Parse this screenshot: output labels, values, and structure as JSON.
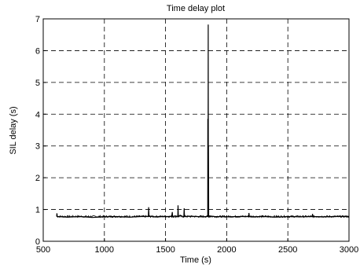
{
  "chart_data": {
    "type": "line",
    "title": "Time delay plot",
    "xlabel": "Time (s)",
    "ylabel": "SIL delay (s)",
    "xlim": [
      500,
      3000
    ],
    "ylim": [
      0,
      7
    ],
    "xticks": [
      "500",
      "1000",
      "1500",
      "2000",
      "2500",
      "3000"
    ],
    "yticks": [
      "0",
      "1",
      "2",
      "3",
      "4",
      "5",
      "6",
      "7"
    ],
    "grid": true,
    "grid_style": "dashed",
    "line_color": "#000000",
    "baseline_value": 0.78,
    "series": [
      {
        "x": [
          610,
          612,
          615,
          700,
          800,
          900,
          1000,
          1100,
          1200,
          1300,
          1360,
          1362,
          1365,
          1380,
          1400,
          1500,
          1550,
          1555,
          1558,
          1580,
          1600,
          1602,
          1605,
          1620,
          1640,
          1650,
          1652,
          1655,
          1700,
          1800,
          1845,
          1846,
          1848,
          1849,
          1850,
          1851,
          1852,
          1853,
          1855,
          1900,
          2000,
          2100,
          2180,
          2182,
          2185,
          2200,
          2300,
          2400,
          2500,
          2600,
          2700,
          2702,
          2705,
          2800,
          2900,
          3000
        ],
        "y": [
          0.78,
          0.88,
          0.78,
          0.76,
          0.78,
          0.75,
          0.77,
          0.78,
          0.76,
          0.78,
          0.78,
          1.07,
          0.78,
          0.79,
          0.77,
          0.78,
          0.78,
          0.92,
          0.78,
          0.8,
          0.78,
          1.13,
          0.78,
          0.82,
          0.78,
          0.78,
          1.04,
          0.78,
          0.79,
          0.77,
          0.78,
          3.85,
          0.9,
          6.82,
          0.9,
          3.0,
          1.6,
          0.78,
          0.8,
          0.78,
          0.77,
          0.78,
          0.78,
          0.89,
          0.78,
          0.77,
          0.78,
          0.76,
          0.78,
          0.77,
          0.78,
          0.86,
          0.78,
          0.77,
          0.78,
          0.78
        ]
      }
    ]
  }
}
